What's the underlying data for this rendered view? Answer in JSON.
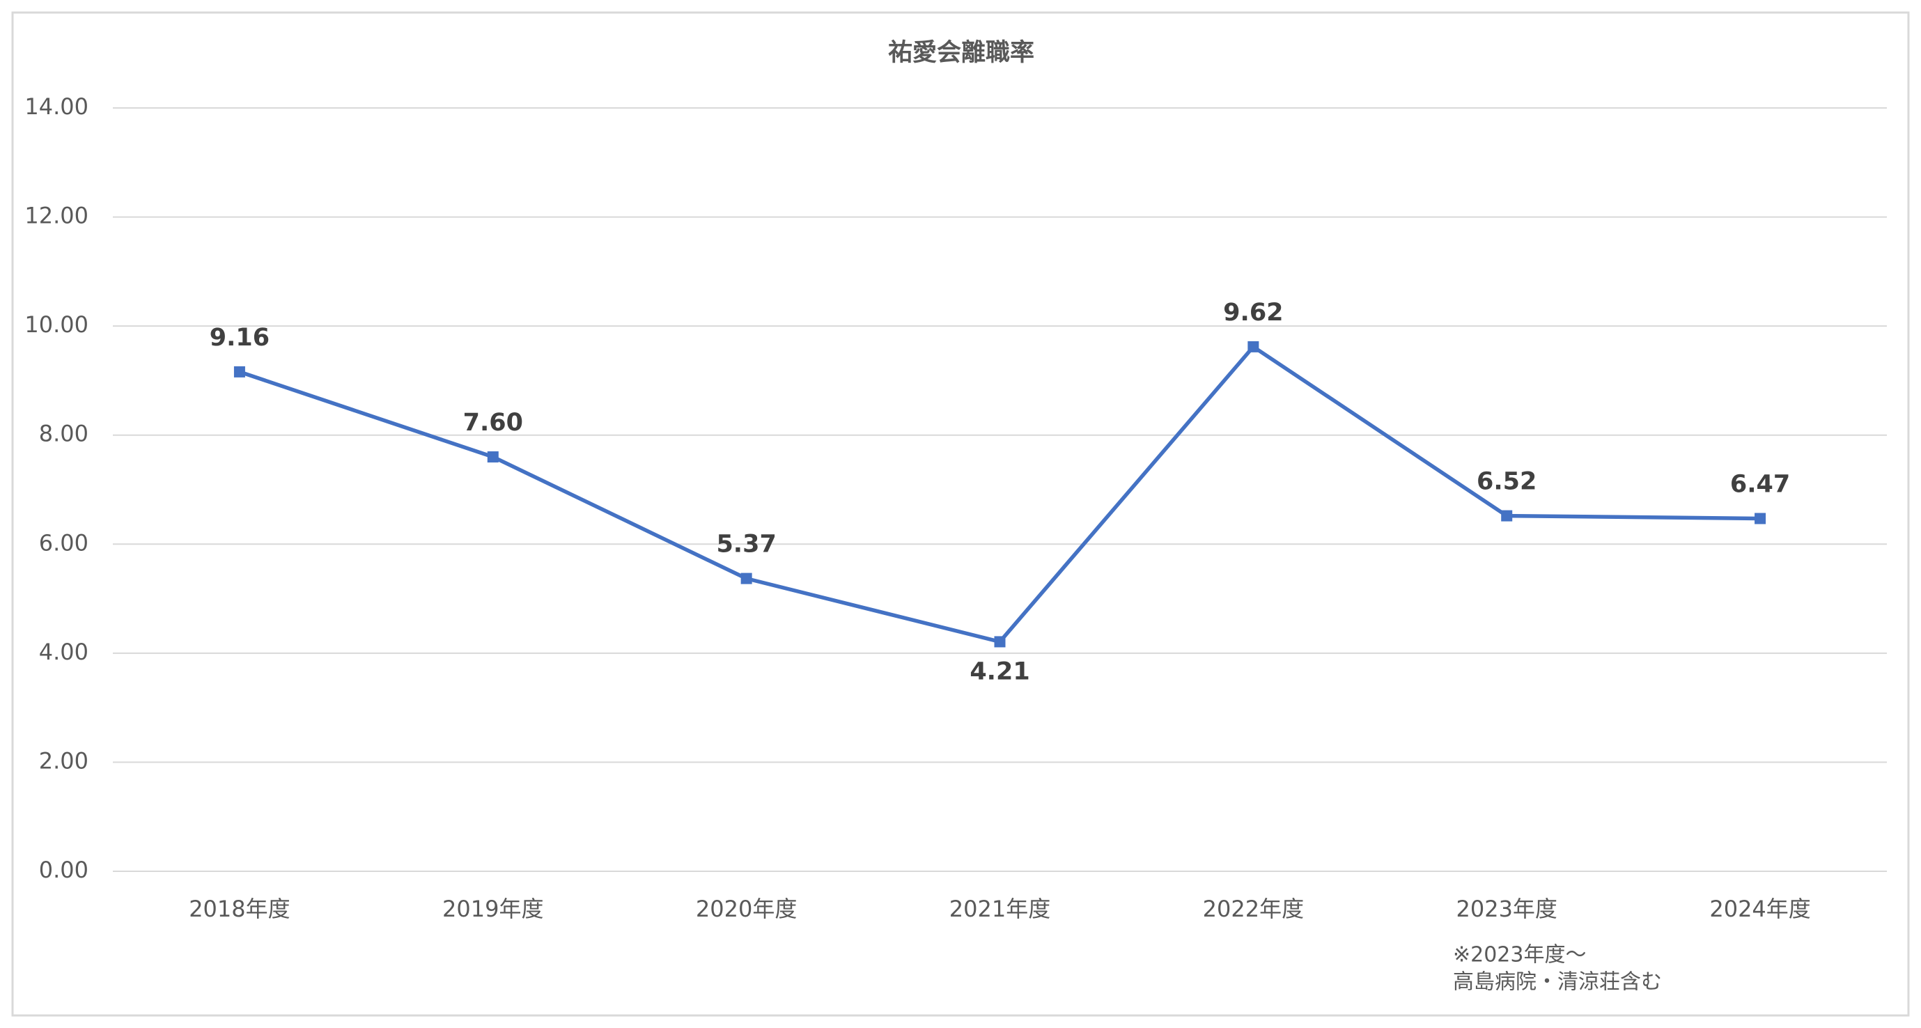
{
  "chart_data": {
    "type": "line",
    "title": "祐愛会離職率",
    "categories": [
      "2018年度",
      "2019年度",
      "2020年度",
      "2021年度",
      "2022年度",
      "2023年度",
      "2024年度"
    ],
    "series": [
      {
        "name": "祐愛会離職率",
        "color": "#4472c4",
        "values": [
          9.16,
          7.6,
          5.37,
          4.21,
          9.62,
          6.52,
          6.47
        ],
        "value_labels": [
          "9.16",
          "7.60",
          "5.37",
          "4.21",
          "9.62",
          "6.52",
          "6.47"
        ]
      }
    ],
    "ylim": [
      0,
      14
    ],
    "yticks": [
      {
        "value": 0,
        "label": "0.00"
      },
      {
        "value": 2,
        "label": "2.00"
      },
      {
        "value": 4,
        "label": "4.00"
      },
      {
        "value": 6,
        "label": "6.00"
      },
      {
        "value": 8,
        "label": "8.00"
      },
      {
        "value": 10,
        "label": "10.00"
      },
      {
        "value": 12,
        "label": "12.00"
      },
      {
        "value": 14,
        "label": "14.00"
      }
    ],
    "grid": true,
    "annotation": [
      "※2023年度～",
      "高島病院・清涼荘含む"
    ]
  }
}
